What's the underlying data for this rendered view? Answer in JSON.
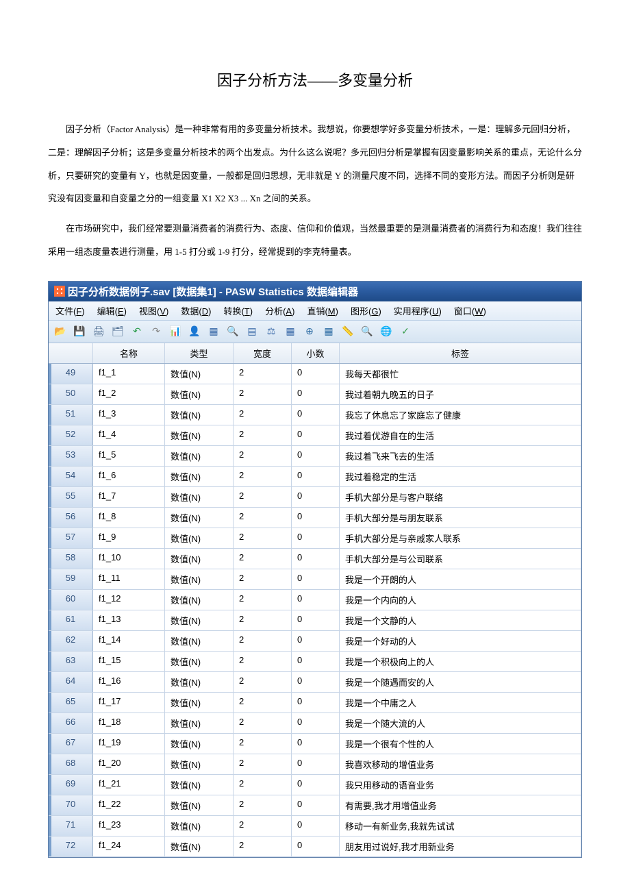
{
  "doc": {
    "title": "因子分析方法——多变量分析",
    "para1": "因子分析（Factor Analysis）是一种非常有用的多变量分析技术。我想说，你要想学好多变量分析技术，一是：理解多元回归分析，二是：理解因子分析；这是多变量分析技术的两个出发点。为什么这么说呢？多元回归分析是掌握有因变量影响关系的重点，无论什么分析，只要研究的变量有 Y，也就是因变量，一般都是回归思想，无非就是 Y 的测量尺度不同，选择不同的变形方法。而因子分析则是研究没有因变量和自变量之分的一组变量 X1 X2 X3 ... Xn 之间的关系。",
    "para2": "在市场研究中，我们经常要测量消费者的消费行为、态度、信仰和价值观，当然最重要的是测量消费者的消费行为和态度！我们往往采用一组态度量表进行测量，用 1-5 打分或 1-9 打分，经常提到的李克特量表。"
  },
  "app": {
    "title": "因子分析数据例子.sav [数据集1] - PASW Statistics 数据编辑器",
    "menu": [
      {
        "label": "文件(F)",
        "u": "F"
      },
      {
        "label": "编辑(E)",
        "u": "E"
      },
      {
        "label": "视图(V)",
        "u": "V"
      },
      {
        "label": "数据(D)",
        "u": "D"
      },
      {
        "label": "转换(T)",
        "u": "T"
      },
      {
        "label": "分析(A)",
        "u": "A"
      },
      {
        "label": "直销(M)",
        "u": "M"
      },
      {
        "label": "图形(G)",
        "u": "G"
      },
      {
        "label": "实用程序(U)",
        "u": "U"
      },
      {
        "label": "窗口(W)",
        "u": "W"
      }
    ],
    "headers": {
      "rownum": "",
      "name": "名称",
      "type": "类型",
      "width": "宽度",
      "dec": "小数",
      "label": "标签"
    },
    "rows": [
      {
        "n": 49,
        "name": "f1_1",
        "type": "数值(N)",
        "width": "2",
        "dec": "0",
        "label": "我每天都很忙"
      },
      {
        "n": 50,
        "name": "f1_2",
        "type": "数值(N)",
        "width": "2",
        "dec": "0",
        "label": "我过着朝九晚五的日子"
      },
      {
        "n": 51,
        "name": "f1_3",
        "type": "数值(N)",
        "width": "2",
        "dec": "0",
        "label": "我忘了休息忘了家庭忘了健康"
      },
      {
        "n": 52,
        "name": "f1_4",
        "type": "数值(N)",
        "width": "2",
        "dec": "0",
        "label": "我过着优游自在的生活"
      },
      {
        "n": 53,
        "name": "f1_5",
        "type": "数值(N)",
        "width": "2",
        "dec": "0",
        "label": "我过着飞来飞去的生活"
      },
      {
        "n": 54,
        "name": "f1_6",
        "type": "数值(N)",
        "width": "2",
        "dec": "0",
        "label": "我过着稳定的生活"
      },
      {
        "n": 55,
        "name": "f1_7",
        "type": "数值(N)",
        "width": "2",
        "dec": "0",
        "label": "手机大部分是与客户联络"
      },
      {
        "n": 56,
        "name": "f1_8",
        "type": "数值(N)",
        "width": "2",
        "dec": "0",
        "label": "手机大部分是与朋友联系"
      },
      {
        "n": 57,
        "name": "f1_9",
        "type": "数值(N)",
        "width": "2",
        "dec": "0",
        "label": "手机大部分是与亲戚家人联系"
      },
      {
        "n": 58,
        "name": "f1_10",
        "type": "数值(N)",
        "width": "2",
        "dec": "0",
        "label": "手机大部分是与公司联系"
      },
      {
        "n": 59,
        "name": "f1_11",
        "type": "数值(N)",
        "width": "2",
        "dec": "0",
        "label": "我是一个开朗的人"
      },
      {
        "n": 60,
        "name": "f1_12",
        "type": "数值(N)",
        "width": "2",
        "dec": "0",
        "label": "我是一个内向的人"
      },
      {
        "n": 61,
        "name": "f1_13",
        "type": "数值(N)",
        "width": "2",
        "dec": "0",
        "label": "我是一个文静的人"
      },
      {
        "n": 62,
        "name": "f1_14",
        "type": "数值(N)",
        "width": "2",
        "dec": "0",
        "label": "我是一个好动的人"
      },
      {
        "n": 63,
        "name": "f1_15",
        "type": "数值(N)",
        "width": "2",
        "dec": "0",
        "label": "我是一个积极向上的人"
      },
      {
        "n": 64,
        "name": "f1_16",
        "type": "数值(N)",
        "width": "2",
        "dec": "0",
        "label": "我是一个随遇而安的人"
      },
      {
        "n": 65,
        "name": "f1_17",
        "type": "数值(N)",
        "width": "2",
        "dec": "0",
        "label": "我是一个中庸之人"
      },
      {
        "n": 66,
        "name": "f1_18",
        "type": "数值(N)",
        "width": "2",
        "dec": "0",
        "label": "我是一个随大流的人"
      },
      {
        "n": 67,
        "name": "f1_19",
        "type": "数值(N)",
        "width": "2",
        "dec": "0",
        "label": "我是一个很有个性的人"
      },
      {
        "n": 68,
        "name": "f1_20",
        "type": "数值(N)",
        "width": "2",
        "dec": "0",
        "label": "我喜欢移动的增值业务"
      },
      {
        "n": 69,
        "name": "f1_21",
        "type": "数值(N)",
        "width": "2",
        "dec": "0",
        "label": "我只用移动的语音业务"
      },
      {
        "n": 70,
        "name": "f1_22",
        "type": "数值(N)",
        "width": "2",
        "dec": "0",
        "label": "有需要,我才用增值业务"
      },
      {
        "n": 71,
        "name": "f1_23",
        "type": "数值(N)",
        "width": "2",
        "dec": "0",
        "label": "移动一有新业务,我就先试试"
      },
      {
        "n": 72,
        "name": "f1_24",
        "type": "数值(N)",
        "width": "2",
        "dec": "0",
        "label": "朋友用过说好,我才用新业务"
      }
    ],
    "toolbar_icons": [
      {
        "name": "open-icon",
        "glyph": "📂",
        "color": "#e6a23c"
      },
      {
        "name": "save-icon",
        "glyph": "💾",
        "color": "#5b7fa6"
      },
      {
        "name": "print-icon",
        "glyph": "🖨",
        "color": "#4e6d91"
      },
      {
        "name": "recall-icon",
        "glyph": "🗂",
        "color": "#4e6d91"
      },
      {
        "name": "undo-icon",
        "glyph": "↶",
        "color": "#2e9e4f"
      },
      {
        "name": "redo-icon",
        "glyph": "↷",
        "color": "#888"
      },
      {
        "name": "goto-icon",
        "glyph": "📊",
        "color": "#e6b800"
      },
      {
        "name": "vars-icon",
        "glyph": "👤",
        "color": "#3a6aa8"
      },
      {
        "name": "insert-var-icon",
        "glyph": "▦",
        "color": "#3a6aa8"
      },
      {
        "name": "find-icon",
        "glyph": "🔍",
        "color": "#3a6aa8"
      },
      {
        "name": "split-icon",
        "glyph": "▤",
        "color": "#3a6aa8"
      },
      {
        "name": "weight-icon",
        "glyph": "⚖",
        "color": "#3a6aa8"
      },
      {
        "name": "select-icon",
        "glyph": "▦",
        "color": "#3a6aa8"
      },
      {
        "name": "value-icon",
        "glyph": "⊕",
        "color": "#2e6da4"
      },
      {
        "name": "sets-icon",
        "glyph": "▦",
        "color": "#2e6da4"
      },
      {
        "name": "ruler-icon",
        "glyph": "📏",
        "color": "#888"
      },
      {
        "name": "zoom-icon",
        "glyph": "🔍",
        "color": "#6aa0d8"
      },
      {
        "name": "globe-icon",
        "glyph": "🌐",
        "color": "#8aa"
      },
      {
        "name": "spell-icon",
        "glyph": "✓",
        "color": "#3a9e4f"
      }
    ]
  }
}
